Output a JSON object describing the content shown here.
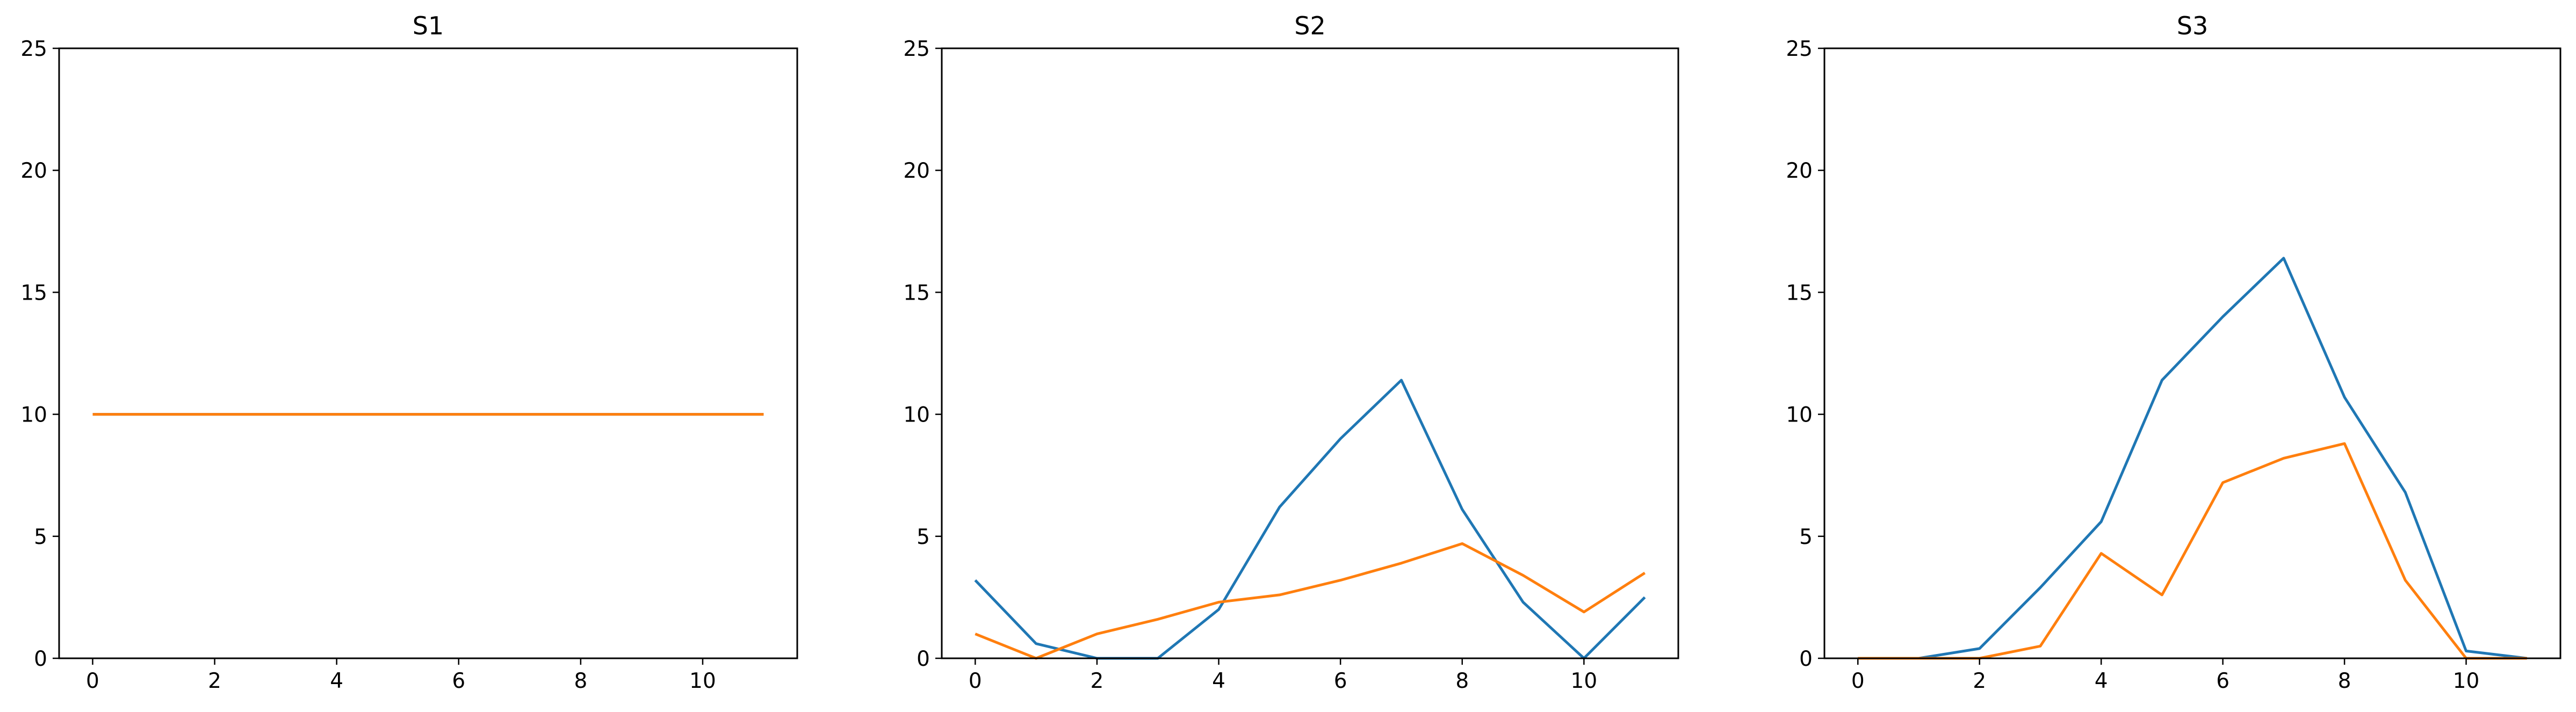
{
  "chart_data": [
    {
      "type": "line",
      "title": "S1",
      "xlabel": "",
      "ylabel": "",
      "xlim": [
        -0.55,
        11.55
      ],
      "ylim": [
        0,
        25
      ],
      "xticks": [
        "0",
        "2",
        "4",
        "6",
        "8",
        "10"
      ],
      "yticks": [
        "0",
        "5",
        "10",
        "15",
        "20",
        "25"
      ],
      "grid": false,
      "x": [
        0,
        1,
        2,
        3,
        4,
        5,
        6,
        7,
        8,
        9,
        10,
        11
      ],
      "series": [
        {
          "color": "#1f77b4",
          "values": [
            10,
            10,
            10,
            10,
            10,
            10,
            10,
            10,
            10,
            10,
            10,
            10
          ]
        },
        {
          "color": "#ff7f0e",
          "values": [
            10,
            10,
            10,
            10,
            10,
            10,
            10,
            10,
            10,
            10,
            10,
            10
          ]
        }
      ]
    },
    {
      "type": "line",
      "title": "S2",
      "xlabel": "",
      "ylabel": "",
      "xlim": [
        -0.55,
        11.55
      ],
      "ylim": [
        0,
        25
      ],
      "xticks": [
        "0",
        "2",
        "4",
        "6",
        "8",
        "10"
      ],
      "yticks": [
        "0",
        "5",
        "10",
        "15",
        "20",
        "25"
      ],
      "grid": false,
      "x": [
        0,
        1,
        2,
        3,
        4,
        5,
        6,
        7,
        8,
        9,
        10,
        11
      ],
      "series": [
        {
          "color": "#1f77b4",
          "values": [
            3.2,
            0.6,
            0.0,
            0.0,
            2.0,
            6.2,
            9.0,
            11.4,
            6.1,
            2.3,
            0.0,
            2.5
          ]
        },
        {
          "color": "#ff7f0e",
          "values": [
            1.0,
            0.0,
            1.0,
            1.6,
            2.3,
            2.6,
            3.2,
            3.9,
            4.7,
            3.4,
            1.9,
            3.5
          ]
        }
      ]
    },
    {
      "type": "line",
      "title": "S3",
      "xlabel": "",
      "ylabel": "",
      "xlim": [
        -0.55,
        11.55
      ],
      "ylim": [
        0,
        25
      ],
      "xticks": [
        "0",
        "2",
        "4",
        "6",
        "8",
        "10"
      ],
      "yticks": [
        "0",
        "5",
        "10",
        "15",
        "20",
        "25"
      ],
      "grid": false,
      "x": [
        0,
        1,
        2,
        3,
        4,
        5,
        6,
        7,
        8,
        9,
        10,
        11
      ],
      "series": [
        {
          "color": "#1f77b4",
          "values": [
            0.0,
            0.0,
            0.4,
            2.9,
            5.6,
            11.4,
            14.0,
            16.4,
            10.7,
            6.8,
            0.3,
            0.0
          ]
        },
        {
          "color": "#ff7f0e",
          "values": [
            0.0,
            0.0,
            0.0,
            0.5,
            4.3,
            2.6,
            7.2,
            8.2,
            8.8,
            3.2,
            0.0,
            0.0
          ]
        }
      ]
    }
  ]
}
